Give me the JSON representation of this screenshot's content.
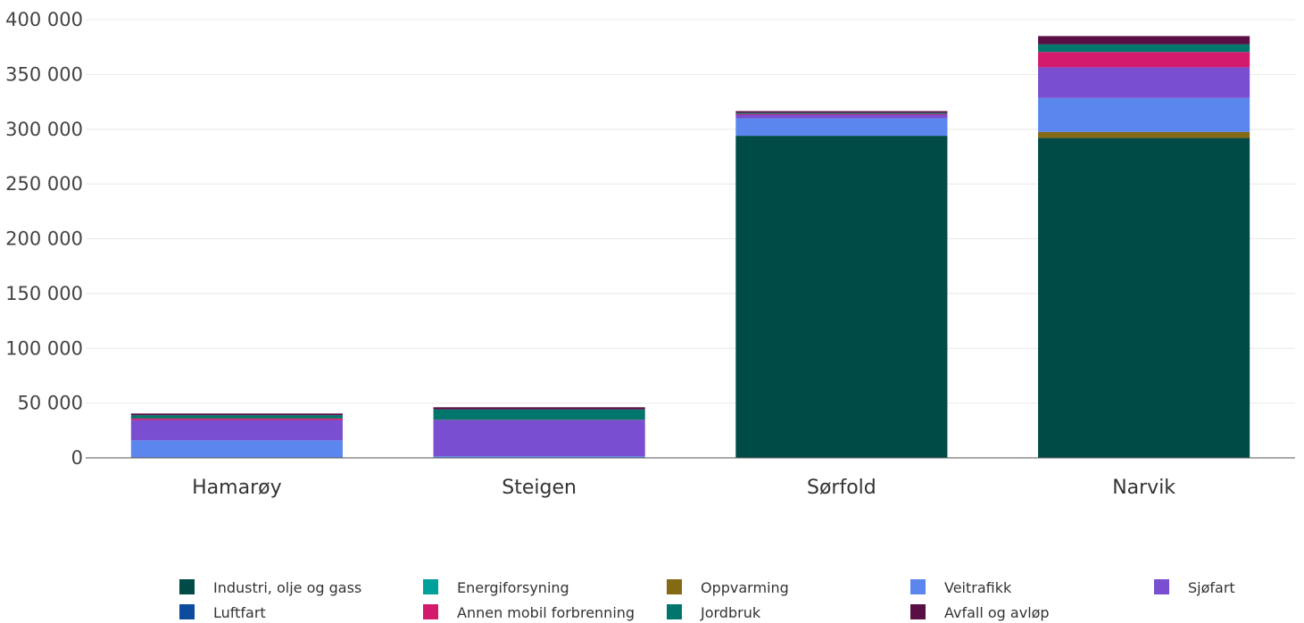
{
  "chart_data": {
    "type": "bar",
    "stacked": true,
    "title": "",
    "xlabel": "",
    "ylabel": "",
    "ylim": [
      0,
      400000
    ],
    "yticks": [
      0,
      50000,
      100000,
      150000,
      200000,
      250000,
      300000,
      350000,
      400000
    ],
    "ytick_labels": [
      "0",
      "50 000",
      "100 000",
      "150 000",
      "200 000",
      "250 000",
      "300 000",
      "350 000",
      "400 000"
    ],
    "grid": true,
    "legend_position": "bottom",
    "categories": [
      "Hamarøy",
      "Steigen",
      "Sørfold",
      "Narvik"
    ],
    "series": [
      {
        "name": "Industri, olje og gass",
        "color": "#004b46",
        "values": [
          0,
          0,
          294000,
          292000
        ]
      },
      {
        "name": "Energiforsyning",
        "color": "#00a19a",
        "values": [
          0,
          0,
          0,
          0
        ]
      },
      {
        "name": "Oppvarming",
        "color": "#856a16",
        "values": [
          0,
          0,
          0,
          5500
        ]
      },
      {
        "name": "Veitrafikk",
        "color": "#5b86ee",
        "values": [
          16000,
          1500,
          16000,
          31000
        ]
      },
      {
        "name": "Sjøfart",
        "color": "#7a4ed0",
        "values": [
          18500,
          33000,
          3200,
          28000
        ]
      },
      {
        "name": "Luftfart",
        "color": "#0b4c9c",
        "values": [
          0,
          0,
          0,
          0
        ]
      },
      {
        "name": "Annen mobil forbrenning",
        "color": "#d31a6c",
        "values": [
          1500,
          200,
          800,
          14000
        ]
      },
      {
        "name": "Jordbruk",
        "color": "#00766c",
        "values": [
          3000,
          9500,
          1000,
          7000
        ]
      },
      {
        "name": "Avfall og avløp",
        "color": "#5a0f44",
        "values": [
          1500,
          2000,
          1500,
          7500
        ]
      }
    ]
  }
}
